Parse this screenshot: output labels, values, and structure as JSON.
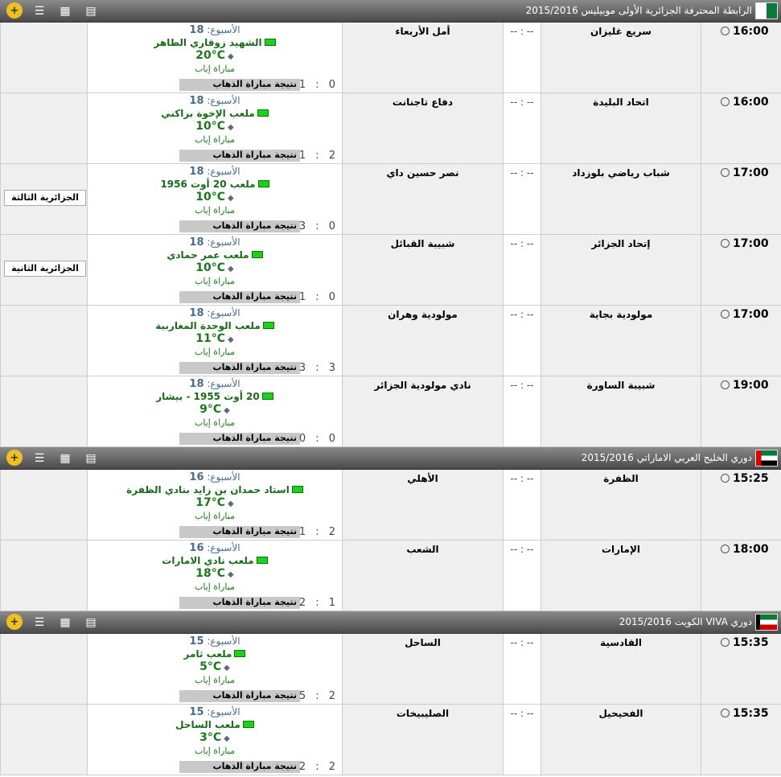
{
  "labels": {
    "week": "الأسبوع:",
    "leg": "مباراة إياب",
    "first_leg": "نتيجة مباراة الذهاب",
    "score": "-- : --"
  },
  "leagues": [
    {
      "title": "الرابطة المحترفة الجزائرية الأولى موبيليس 2015/2016",
      "flag": "algeria",
      "matches": [
        {
          "time": "16:00",
          "home": "سريع غليزان",
          "away": "أمل الأربعاء",
          "week": "18",
          "stadium": "الشهيد زوقاري الطاهر",
          "temp": "20°C",
          "weather": "clear-night-icon",
          "first_leg": "1 : 0",
          "tag": ""
        },
        {
          "time": "16:00",
          "home": "اتحاد البليدة",
          "away": "دفاع تاجنانت",
          "week": "18",
          "stadium": "ملعب الإخوة براكني",
          "temp": "10°C",
          "weather": "cloud-rain-icon",
          "first_leg": "1 : 2",
          "tag": ""
        },
        {
          "time": "17:00",
          "home": "شباب رياضي بلوزداد",
          "away": "نصر حسين داي",
          "week": "18",
          "stadium": "ملعب 20 أوت 1956",
          "temp": "10°C",
          "weather": "cloud-rain-icon",
          "first_leg": "3 : 0",
          "tag": "الجزائرية الثالثة"
        },
        {
          "time": "17:00",
          "home": "إتحاد الجزائر",
          "away": "شبيبة القبائل",
          "week": "18",
          "stadium": "ملعب عمر حمادي",
          "temp": "10°C",
          "weather": "cloud-rain-icon",
          "first_leg": "1 : 0",
          "tag": "الجزائرية الثانية"
        },
        {
          "time": "17:00",
          "home": "مولودية بجاية",
          "away": "مولودية وهران",
          "week": "18",
          "stadium": "ملعب الوحدة المغاربية",
          "temp": "11°C",
          "weather": "clear-night-icon",
          "first_leg": "3 : 3",
          "tag": ""
        },
        {
          "time": "19:00",
          "home": "شبيبة الساورة",
          "away": "نادي مولودية الجزائر",
          "week": "18",
          "stadium": "20 أوت 1955 - بيشار",
          "temp": "9°C",
          "weather": "clear-night-icon",
          "first_leg": "0 : 0",
          "tag": ""
        }
      ]
    },
    {
      "title": "دوري الخليج العربي الاماراتي 2015/2016",
      "flag": "uae",
      "matches": [
        {
          "time": "15:25",
          "home": "الظفرة",
          "away": "الأهلي",
          "week": "16",
          "stadium": "استاد حمدان بن زايد بنادي الظفرة",
          "temp": "17°C",
          "weather": "clear-night-icon",
          "first_leg": "1 : 2",
          "tag": ""
        },
        {
          "time": "18:00",
          "home": "الإمارات",
          "away": "الشعب",
          "week": "16",
          "stadium": "ملعب نادي الامارات",
          "temp": "18°C",
          "weather": "clear-night-icon",
          "first_leg": "2 : 1",
          "tag": ""
        }
      ]
    },
    {
      "title": "دوري VIVA الكويت 2015/2016",
      "flag": "kuwait",
      "matches": [
        {
          "time": "15:35",
          "home": "القادسية",
          "away": "الساحل",
          "week": "15",
          "stadium": "ملعب ثامر",
          "temp": "5°C",
          "weather": "clear-night-icon",
          "first_leg": "5 : 2",
          "tag": ""
        },
        {
          "time": "15:35",
          "home": "الفحيحيل",
          "away": "الصليبيخات",
          "week": "15",
          "stadium": "ملعب الساحل",
          "temp": "3°C",
          "weather": "clear-night-icon",
          "first_leg": "2 : 2",
          "tag": ""
        }
      ]
    }
  ]
}
